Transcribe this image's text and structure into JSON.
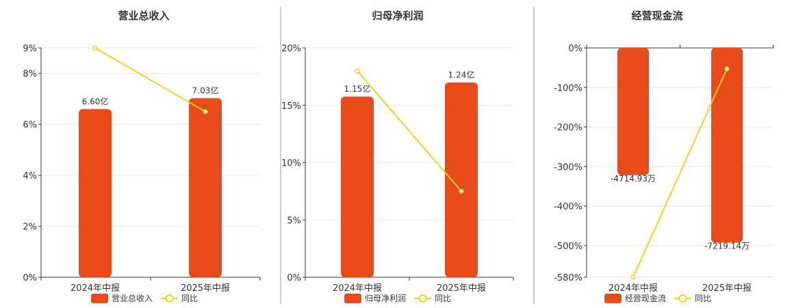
{
  "colors": {
    "bar": "#E84A1A",
    "line": "#F2D11E",
    "text": "#333333",
    "grid": "#e6e6e6"
  },
  "chart_data": [
    {
      "type": "bar",
      "title": "营业总收入",
      "categories": [
        "2024年中报",
        "2025年中报"
      ],
      "series": [
        {
          "name": "营业总收入",
          "values": [
            6.6,
            7.03
          ],
          "data_labels": [
            "6.60亿",
            "7.03亿"
          ],
          "scale_max": 9.0
        },
        {
          "name": "同比",
          "type": "line",
          "values": [
            9.0,
            6.5
          ]
        }
      ],
      "yticks": [
        "0%",
        "2%",
        "4%",
        "6%",
        "8%",
        "9%"
      ],
      "ytick_values": [
        0,
        2,
        4,
        6,
        8,
        9
      ],
      "ylim": [
        0,
        9
      ],
      "legend": [
        "营业总收入",
        "同比"
      ],
      "legend_position": "bottom",
      "grid": true
    },
    {
      "type": "bar",
      "title": "归母净利润",
      "categories": [
        "2024年中报",
        "2025年中报"
      ],
      "series": [
        {
          "name": "归母净利润",
          "values": [
            1.15,
            1.24
          ],
          "data_labels": [
            "1.15亿",
            "1.24亿"
          ],
          "scale_max": 1.46
        },
        {
          "name": "同比",
          "type": "line",
          "values": [
            18.0,
            7.5
          ]
        }
      ],
      "yticks": [
        "0%",
        "5%",
        "10%",
        "15%",
        "20%"
      ],
      "ytick_values": [
        0,
        5,
        10,
        15,
        20
      ],
      "ylim": [
        0,
        20
      ],
      "legend": [
        "归母净利润",
        "同比"
      ],
      "legend_position": "bottom",
      "grid": true
    },
    {
      "type": "bar",
      "title": "经营现金流",
      "categories": [
        "2024年中报",
        "2025年中报"
      ],
      "series": [
        {
          "name": "经营现金流",
          "values": [
            -4714.93,
            -7219.14
          ],
          "data_labels": [
            "-4714.93万",
            "-7219.14万"
          ],
          "scale_max": 8500
        },
        {
          "name": "同比",
          "type": "line",
          "values": [
            -580,
            -53
          ]
        }
      ],
      "yticks": [
        "0%",
        "-100%",
        "-200%",
        "-300%",
        "-400%",
        "-500%",
        "-580%"
      ],
      "ytick_values": [
        0,
        -100,
        -200,
        -300,
        -400,
        -500,
        -580
      ],
      "ylim": [
        -580,
        0
      ],
      "legend": [
        "经营现金流",
        "同比"
      ],
      "legend_position": "bottom",
      "grid": true
    }
  ]
}
